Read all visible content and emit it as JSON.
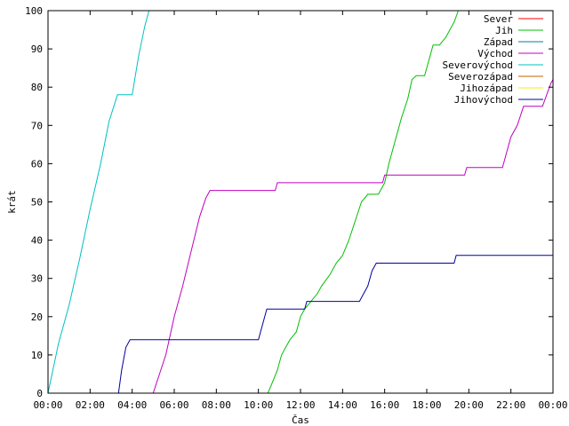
{
  "chart_data": {
    "type": "line",
    "title": "",
    "xlabel": "Čas",
    "ylabel": "krát",
    "xlim": [
      0,
      24
    ],
    "ylim": [
      0,
      100
    ],
    "x_ticks": [
      {
        "value": 0,
        "label": "00:00"
      },
      {
        "value": 2,
        "label": "02:00"
      },
      {
        "value": 4,
        "label": "04:00"
      },
      {
        "value": 6,
        "label": "06:00"
      },
      {
        "value": 8,
        "label": "08:00"
      },
      {
        "value": 10,
        "label": "10:00"
      },
      {
        "value": 12,
        "label": "12:00"
      },
      {
        "value": 14,
        "label": "14:00"
      },
      {
        "value": 16,
        "label": "16:00"
      },
      {
        "value": 18,
        "label": "18:00"
      },
      {
        "value": 20,
        "label": "20:00"
      },
      {
        "value": 22,
        "label": "22:00"
      },
      {
        "value": 24,
        "label": "00:00"
      }
    ],
    "y_ticks": [
      0,
      10,
      20,
      30,
      40,
      50,
      60,
      70,
      80,
      90,
      100
    ],
    "grid": false,
    "legend_position": "top-right",
    "series": [
      {
        "name": "Sever",
        "color": "#ff0000",
        "points": []
      },
      {
        "name": "Jih",
        "color": "#00c000",
        "points": [
          [
            10.45,
            0
          ],
          [
            10.6,
            2
          ],
          [
            10.9,
            6
          ],
          [
            11.0,
            8
          ],
          [
            11.1,
            10
          ],
          [
            11.3,
            12
          ],
          [
            11.5,
            14
          ],
          [
            11.8,
            16
          ],
          [
            12.0,
            20
          ],
          [
            12.2,
            22
          ],
          [
            12.5,
            24
          ],
          [
            12.8,
            26
          ],
          [
            13.0,
            28
          ],
          [
            13.4,
            31
          ],
          [
            13.7,
            34
          ],
          [
            14.0,
            36
          ],
          [
            14.3,
            40
          ],
          [
            14.6,
            45
          ],
          [
            14.9,
            50
          ],
          [
            15.2,
            52
          ],
          [
            15.7,
            52
          ],
          [
            16.0,
            55
          ],
          [
            16.2,
            60
          ],
          [
            16.5,
            66
          ],
          [
            16.8,
            72
          ],
          [
            17.1,
            77
          ],
          [
            17.3,
            82
          ],
          [
            17.5,
            83
          ],
          [
            17.9,
            83
          ],
          [
            18.1,
            87
          ],
          [
            18.3,
            91
          ],
          [
            18.6,
            91
          ],
          [
            18.9,
            93
          ],
          [
            19.1,
            95
          ],
          [
            19.3,
            97
          ],
          [
            19.5,
            100
          ]
        ]
      },
      {
        "name": "Západ",
        "color": "#0080a0",
        "points": []
      },
      {
        "name": "Východ",
        "color": "#c000c0",
        "points": [
          [
            5.0,
            0
          ],
          [
            5.3,
            5
          ],
          [
            5.6,
            10
          ],
          [
            6.0,
            20
          ],
          [
            6.4,
            28
          ],
          [
            6.8,
            37
          ],
          [
            7.2,
            46
          ],
          [
            7.5,
            51
          ],
          [
            7.7,
            53
          ],
          [
            10.8,
            53
          ],
          [
            10.9,
            55
          ],
          [
            15.9,
            55
          ],
          [
            16.0,
            57
          ],
          [
            19.8,
            57
          ],
          [
            19.9,
            59
          ],
          [
            21.6,
            59
          ],
          [
            21.8,
            63
          ],
          [
            22.0,
            67
          ],
          [
            22.3,
            70
          ],
          [
            22.6,
            75
          ],
          [
            23.5,
            75
          ],
          [
            23.7,
            78
          ],
          [
            23.9,
            81
          ],
          [
            24.0,
            82
          ]
        ]
      },
      {
        "name": "Severovýchod",
        "color": "#00c0c0",
        "points": [
          [
            0,
            0
          ],
          [
            0.5,
            13
          ],
          [
            1.0,
            23
          ],
          [
            1.5,
            35
          ],
          [
            2.0,
            48
          ],
          [
            2.5,
            60
          ],
          [
            2.9,
            71
          ],
          [
            3.3,
            78
          ],
          [
            4.0,
            78
          ],
          [
            4.3,
            88
          ],
          [
            4.6,
            96
          ],
          [
            4.8,
            100
          ]
        ]
      },
      {
        "name": "Severozápad",
        "color": "#c06000",
        "points": []
      },
      {
        "name": "Jihozápad",
        "color": "#f0f000",
        "points": []
      },
      {
        "name": "Jihovýchod",
        "color": "#0000a0",
        "points": [
          [
            3.35,
            0
          ],
          [
            3.5,
            6
          ],
          [
            3.7,
            12
          ],
          [
            3.9,
            14
          ],
          [
            10.0,
            14
          ],
          [
            10.2,
            18
          ],
          [
            10.4,
            22
          ],
          [
            12.2,
            22
          ],
          [
            12.3,
            24
          ],
          [
            14.8,
            24
          ],
          [
            15.0,
            26
          ],
          [
            15.2,
            28
          ],
          [
            15.4,
            32
          ],
          [
            15.6,
            34
          ],
          [
            19.3,
            34
          ],
          [
            19.4,
            36
          ],
          [
            24.0,
            36
          ]
        ]
      }
    ]
  }
}
